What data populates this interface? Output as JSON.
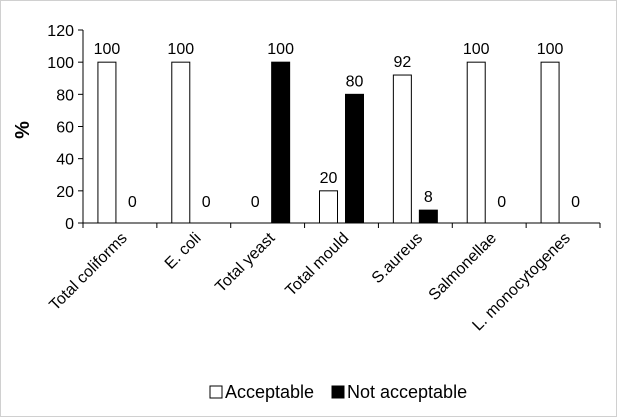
{
  "chart_data": {
    "type": "bar",
    "categories": [
      "Total coliforms",
      "E. coli",
      "Total yeast",
      "Total mould",
      "S.aureus",
      "Salmonellae",
      "L. monocytogenes"
    ],
    "series": [
      {
        "name": "Acceptable",
        "values": [
          100,
          100,
          0,
          20,
          92,
          100,
          100
        ],
        "color": "#ffffff",
        "stroke": "#000000"
      },
      {
        "name": "Not acceptable",
        "values": [
          0,
          0,
          100,
          80,
          8,
          0,
          0
        ],
        "color": "#000000",
        "stroke": "#000000"
      }
    ],
    "title": "",
    "xlabel": "",
    "ylabel": "%",
    "ylim": [
      0,
      120
    ],
    "yticks": [
      0,
      20,
      40,
      60,
      80,
      100,
      120
    ],
    "grid": false,
    "legend_position": "bottom"
  }
}
